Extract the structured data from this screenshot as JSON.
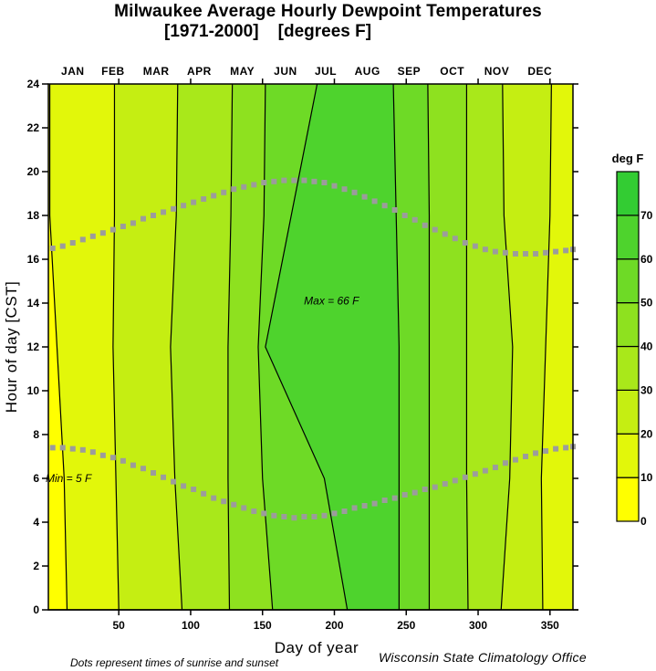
{
  "chart_data": {
    "type": "heatmap",
    "subtype": "filled-contour",
    "title": "Milwaukee  Average Hourly Dewpoint Temperatures",
    "subtitle": "[1971-2000]    [degrees F]",
    "xlabel": "Day of year",
    "ylabel": "Hour of day [CST]",
    "xlim": [
      1,
      366
    ],
    "ylim": [
      0,
      24
    ],
    "x_ticks": [
      50,
      100,
      150,
      200,
      250,
      300,
      350
    ],
    "y_ticks": [
      0,
      2,
      4,
      6,
      8,
      10,
      12,
      14,
      16,
      18,
      20,
      22,
      24
    ],
    "month_labels": [
      "JAN",
      "FEB",
      "MAR",
      "APR",
      "MAY",
      "JUN",
      "JUL",
      "AUG",
      "SEP",
      "OCT",
      "NOV",
      "DEC"
    ],
    "month_label_days": [
      18,
      46,
      76,
      106,
      136,
      166,
      194,
      223,
      252,
      282,
      313,
      343
    ],
    "colorbar": {
      "title": "deg F",
      "levels": [
        0,
        10,
        20,
        30,
        40,
        50,
        60,
        70,
        80
      ],
      "tick_labels": [
        "0",
        "10",
        "20",
        "30",
        "40",
        "50",
        "60",
        "70"
      ],
      "colors": [
        "#FFFF00",
        "#E2F70A",
        "#C5EE12",
        "#A9E81A",
        "#8EE11F",
        "#6EDA26",
        "#4ED32D",
        "#33CC33"
      ]
    },
    "contour_crossings": {
      "description": "day-of-year where each contour boundary occurs, at hours 0, 6, 12, 18, 24; bands listed as band index in colorbar",
      "hours": [
        0,
        6,
        12,
        18,
        24
      ],
      "segments": [
        {
          "band": 0,
          "start": [
            1,
            1,
            1,
            1,
            1
          ],
          "end": [
            14,
            12,
            7,
            2,
            2
          ]
        },
        {
          "band": 1,
          "start": [
            14,
            12,
            7,
            2,
            2
          ],
          "end": [
            50,
            48,
            46,
            47,
            47
          ]
        },
        {
          "band": 2,
          "start": [
            50,
            48,
            46,
            47,
            47
          ],
          "end": [
            94,
            89,
            86,
            90,
            91
          ]
        },
        {
          "band": 3,
          "start": [
            94,
            89,
            86,
            90,
            91
          ],
          "end": [
            127,
            126,
            126,
            128,
            129
          ]
        },
        {
          "band": 4,
          "start": [
            127,
            126,
            126,
            128,
            129
          ],
          "end": [
            157,
            150,
            147,
            151,
            152
          ]
        },
        {
          "band": 5,
          "start": [
            157,
            150,
            147,
            151,
            152
          ],
          "end": [
            209,
            193,
            152,
            170,
            188
          ]
        },
        {
          "band": 6,
          "start": [
            209,
            193,
            152,
            170,
            188
          ],
          "end": [
            245,
            245,
            245,
            243,
            241
          ]
        },
        {
          "band": 5,
          "start": [
            245,
            245,
            245,
            243,
            241
          ],
          "end": [
            266,
            266,
            266,
            266,
            265
          ]
        },
        {
          "band": 4,
          "start": [
            266,
            266,
            266,
            266,
            265
          ],
          "end": [
            293,
            292,
            292,
            292,
            292
          ]
        },
        {
          "band": 3,
          "start": [
            293,
            292,
            292,
            292,
            292
          ],
          "end": [
            316,
            322,
            324,
            318,
            317
          ]
        },
        {
          "band": 2,
          "start": [
            316,
            322,
            324,
            318,
            317
          ],
          "end": [
            345,
            344,
            347,
            350,
            351
          ]
        },
        {
          "band": 1,
          "start": [
            345,
            344,
            347,
            350,
            351
          ],
          "end": [
            366,
            366,
            366,
            366,
            366
          ]
        }
      ]
    },
    "sunrise_sunset": {
      "days": [
        4,
        11,
        18,
        25,
        32,
        39,
        46,
        53,
        60,
        67,
        74,
        81,
        88,
        95,
        102,
        109,
        116,
        123,
        130,
        137,
        144,
        151,
        158,
        165,
        172,
        179,
        186,
        193,
        200,
        207,
        214,
        221,
        228,
        235,
        242,
        249,
        256,
        263,
        270,
        277,
        284,
        291,
        298,
        305,
        312,
        319,
        326,
        333,
        340,
        347,
        354,
        361,
        366
      ],
      "sunrise_hours": [
        7.4,
        7.4,
        7.35,
        7.3,
        7.2,
        7.05,
        6.95,
        6.8,
        6.6,
        6.45,
        6.25,
        6.05,
        5.85,
        5.65,
        5.5,
        5.3,
        5.1,
        4.95,
        4.8,
        4.65,
        4.5,
        4.4,
        4.3,
        4.25,
        4.2,
        4.25,
        4.25,
        4.3,
        4.4,
        4.5,
        4.65,
        4.75,
        4.85,
        5.0,
        5.1,
        5.25,
        5.35,
        5.5,
        5.6,
        5.75,
        5.9,
        6.05,
        6.2,
        6.35,
        6.5,
        6.7,
        6.85,
        7.0,
        7.15,
        7.25,
        7.35,
        7.4,
        7.45
      ],
      "sunset_hours": [
        16.5,
        16.6,
        16.75,
        16.9,
        17.05,
        17.2,
        17.35,
        17.5,
        17.65,
        17.85,
        18.0,
        18.15,
        18.3,
        18.45,
        18.6,
        18.75,
        18.9,
        19.05,
        19.2,
        19.3,
        19.4,
        19.5,
        19.55,
        19.6,
        19.6,
        19.6,
        19.55,
        19.5,
        19.35,
        19.2,
        19.05,
        18.85,
        18.65,
        18.45,
        18.25,
        18.0,
        17.8,
        17.55,
        17.35,
        17.15,
        16.95,
        16.75,
        16.6,
        16.45,
        16.35,
        16.3,
        16.25,
        16.25,
        16.25,
        16.3,
        16.35,
        16.4,
        16.45
      ]
    },
    "annotations": [
      {
        "text": "Max = 66 F",
        "day": 198,
        "hour": 14.1
      },
      {
        "text": "Min = 5 F",
        "day": 1,
        "hour": 6.0
      }
    ],
    "footnote": "Dots represent times of sunrise and sunset",
    "credit": "Wisconsin State Climatology Office"
  }
}
